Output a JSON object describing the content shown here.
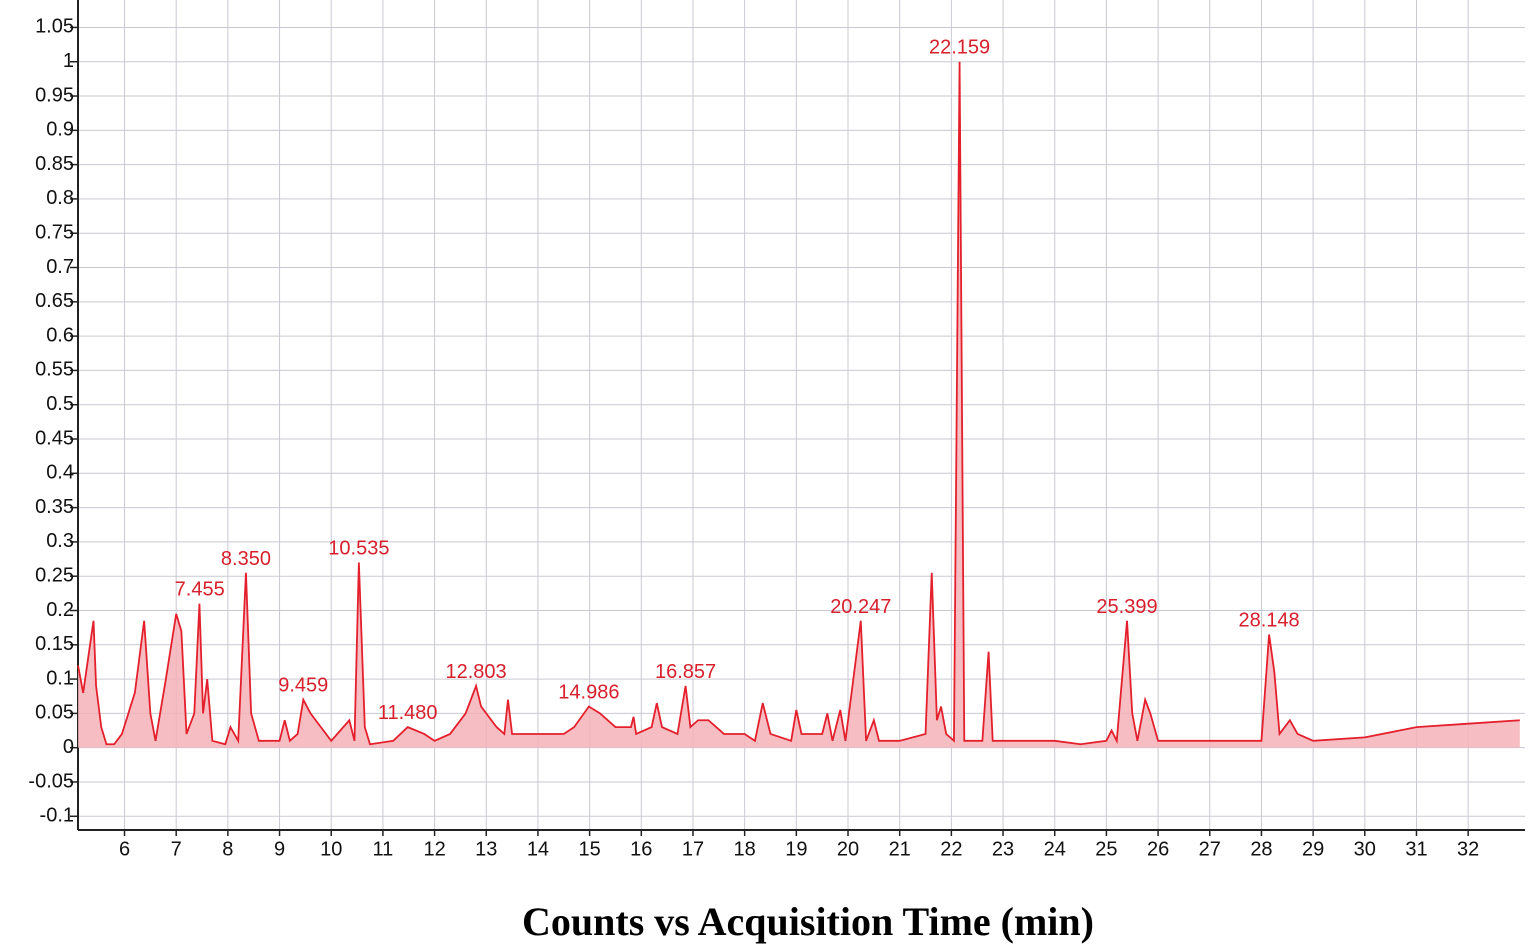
{
  "chart_data": {
    "type": "line",
    "x_label": "Counts vs Acquisition Time (min)",
    "xlim": [
      5.1,
      33.1
    ],
    "ylim": [
      -0.12,
      1.09
    ],
    "xticks": [
      6,
      7,
      8,
      9,
      10,
      11,
      12,
      13,
      14,
      15,
      16,
      17,
      18,
      19,
      20,
      21,
      22,
      23,
      24,
      25,
      26,
      27,
      28,
      29,
      30,
      31,
      32
    ],
    "yticks": [
      -0.1,
      -0.05,
      0,
      0.05,
      0.1,
      0.15,
      0.2,
      0.25,
      0.3,
      0.35,
      0.4,
      0.45,
      0.5,
      0.55,
      0.6,
      0.65,
      0.7,
      0.75,
      0.8,
      0.85,
      0.9,
      0.95,
      1,
      1.05
    ],
    "grid": true,
    "fill": true,
    "series": [
      {
        "color": "#e3202c",
        "fill_color": "#f5b3b8",
        "x": [
          5.1,
          5.2,
          5.4,
          5.45,
          5.55,
          5.65,
          5.8,
          5.95,
          6.2,
          6.38,
          6.5,
          6.6,
          6.8,
          7.0,
          7.1,
          7.2,
          7.35,
          7.45,
          7.52,
          7.6,
          7.7,
          7.95,
          8.05,
          8.2,
          8.35,
          8.45,
          8.6,
          9.0,
          9.1,
          9.2,
          9.35,
          9.46,
          9.6,
          9.8,
          10.0,
          10.35,
          10.45,
          10.535,
          10.65,
          10.75,
          11.2,
          11.48,
          11.8,
          12.0,
          12.3,
          12.6,
          12.803,
          12.9,
          13.2,
          13.35,
          13.42,
          13.5,
          14.0,
          14.5,
          14.7,
          14.986,
          15.2,
          15.5,
          15.8,
          15.85,
          15.9,
          16.2,
          16.3,
          16.4,
          16.7,
          16.857,
          16.95,
          17.1,
          17.3,
          17.6,
          18.0,
          18.2,
          18.35,
          18.5,
          18.9,
          19.0,
          19.1,
          19.5,
          19.6,
          19.7,
          19.85,
          19.95,
          20.247,
          20.35,
          20.5,
          20.6,
          21.0,
          21.5,
          21.62,
          21.72,
          21.8,
          21.9,
          22.05,
          22.159,
          22.25,
          22.6,
          22.72,
          22.8,
          23.5,
          24.0,
          24.5,
          25.0,
          25.1,
          25.2,
          25.399,
          25.5,
          25.6,
          25.75,
          25.85,
          26.0,
          27.0,
          28.0,
          28.148,
          28.25,
          28.35,
          28.55,
          28.7,
          29.0,
          30.0,
          31.0,
          32.0,
          33.0
        ],
        "values": [
          0.12,
          0.08,
          0.185,
          0.09,
          0.03,
          0.005,
          0.005,
          0.02,
          0.08,
          0.185,
          0.05,
          0.01,
          0.1,
          0.195,
          0.17,
          0.02,
          0.05,
          0.21,
          0.05,
          0.1,
          0.01,
          0.005,
          0.03,
          0.01,
          0.255,
          0.05,
          0.01,
          0.01,
          0.04,
          0.01,
          0.02,
          0.07,
          0.05,
          0.03,
          0.01,
          0.04,
          0.01,
          0.27,
          0.03,
          0.005,
          0.01,
          0.03,
          0.02,
          0.01,
          0.02,
          0.05,
          0.09,
          0.06,
          0.03,
          0.02,
          0.07,
          0.02,
          0.02,
          0.02,
          0.03,
          0.06,
          0.05,
          0.03,
          0.03,
          0.045,
          0.02,
          0.03,
          0.065,
          0.03,
          0.02,
          0.09,
          0.03,
          0.04,
          0.04,
          0.02,
          0.02,
          0.01,
          0.065,
          0.02,
          0.01,
          0.055,
          0.02,
          0.02,
          0.05,
          0.01,
          0.055,
          0.01,
          0.185,
          0.01,
          0.04,
          0.01,
          0.01,
          0.02,
          0.255,
          0.04,
          0.06,
          0.02,
          0.01,
          1.0,
          0.01,
          0.01,
          0.14,
          0.01,
          0.01,
          0.01,
          0.005,
          0.01,
          0.025,
          0.01,
          0.185,
          0.05,
          0.01,
          0.07,
          0.05,
          0.01,
          0.01,
          0.01,
          0.165,
          0.11,
          0.02,
          0.04,
          0.02,
          0.01,
          0.015,
          0.03,
          0.035,
          0.04
        ]
      }
    ],
    "annotations": [
      {
        "text": "7.455",
        "x": 7.455,
        "y": 0.21
      },
      {
        "text": "8.350",
        "x": 8.35,
        "y": 0.255
      },
      {
        "text": "9.459",
        "x": 9.459,
        "y": 0.07
      },
      {
        "text": "10.535",
        "x": 10.535,
        "y": 0.27
      },
      {
        "text": "11.480",
        "x": 11.48,
        "y": 0.03
      },
      {
        "text": "12.803",
        "x": 12.803,
        "y": 0.09
      },
      {
        "text": "14.986",
        "x": 14.986,
        "y": 0.06
      },
      {
        "text": "16.857",
        "x": 16.857,
        "y": 0.09
      },
      {
        "text": "20.247",
        "x": 20.247,
        "y": 0.185
      },
      {
        "text": "22.159",
        "x": 22.159,
        "y": 1.0
      },
      {
        "text": "25.399",
        "x": 25.399,
        "y": 0.185
      },
      {
        "text": "28.148",
        "x": 28.148,
        "y": 0.165
      }
    ]
  }
}
